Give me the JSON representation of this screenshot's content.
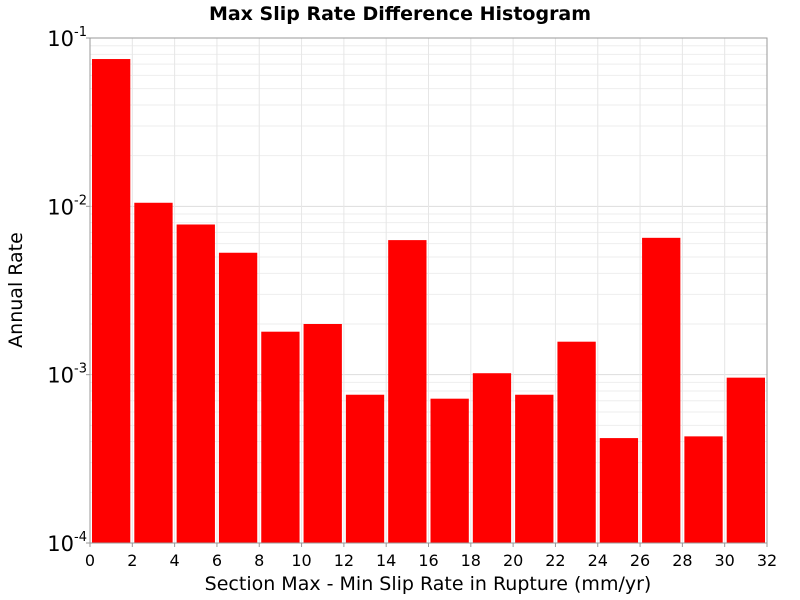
{
  "chart_data": {
    "type": "bar",
    "title": "Max Slip Rate Difference Histogram",
    "xlabel": "Section Max - Min Slip Rate in Rupture (mm/yr)",
    "ylabel": "Annual Rate",
    "xlim": [
      0,
      32
    ],
    "ylim": [
      0.0001,
      0.1
    ],
    "yscale": "log",
    "bin_width": 2,
    "grid": true,
    "bar_color": "#ff0000",
    "xticks": [
      0,
      2,
      4,
      6,
      8,
      10,
      12,
      14,
      16,
      18,
      20,
      22,
      24,
      26,
      28,
      30,
      32
    ],
    "xtick_labels": [
      "0",
      "2",
      "4",
      "6",
      "8",
      "10",
      "12",
      "14",
      "16",
      "18",
      "20",
      "22",
      "24",
      "26",
      "28",
      "30",
      "32"
    ],
    "yticks": [
      {
        "value": 0.1,
        "base": "10",
        "exp": "-1"
      },
      {
        "value": 0.01,
        "base": "10",
        "exp": "-2"
      },
      {
        "value": 0.001,
        "base": "10",
        "exp": "-3"
      },
      {
        "value": 0.0001,
        "base": "10",
        "exp": "-4"
      }
    ],
    "x": [
      1,
      3,
      5,
      7,
      9,
      11,
      13,
      15,
      17,
      19,
      21,
      23,
      25,
      27,
      29,
      31
    ],
    "values": [
      0.075,
      0.0105,
      0.0078,
      0.0053,
      0.0018,
      0.002,
      0.00076,
      0.0063,
      0.00072,
      0.00102,
      0.00076,
      0.00157,
      0.00042,
      0.0065,
      0.00043,
      0.00096
    ]
  }
}
